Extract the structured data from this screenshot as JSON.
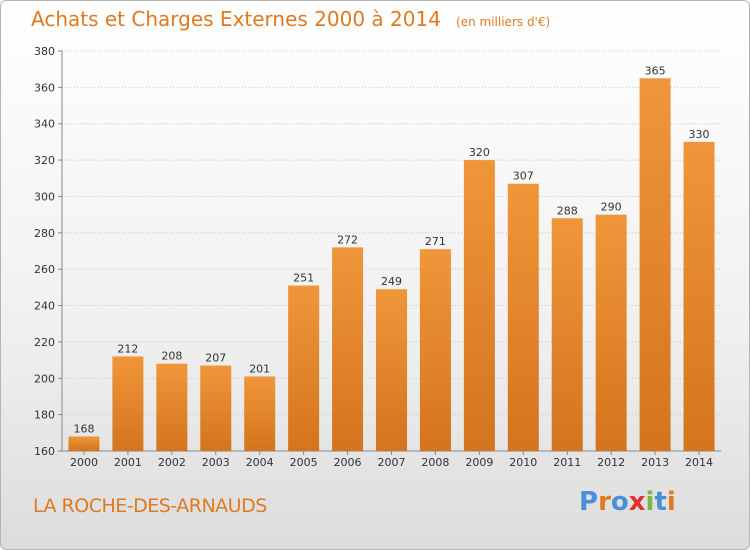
{
  "title": "Achats et Charges Externes 2000 à 2014",
  "unit": "(en milliers d'€)",
  "place": "LA ROCHE-DES-ARNAUDS",
  "logo": {
    "text": "Proxiti",
    "colors": [
      "#4a90d9",
      "#e07a1f",
      "#4a90d9",
      "#e8302a",
      "#7ab648",
      "#4a90d9",
      "#e07a1f"
    ]
  },
  "colors": {
    "bar": "#f0963a",
    "bar_dark": "#d4741e",
    "accent": "#e07a1f",
    "grid": "#c8c8c8"
  },
  "chart_data": {
    "type": "bar",
    "categories": [
      "2000",
      "2001",
      "2002",
      "2003",
      "2004",
      "2005",
      "2006",
      "2007",
      "2008",
      "2009",
      "2010",
      "2011",
      "2012",
      "2013",
      "2014"
    ],
    "values": [
      168,
      212,
      208,
      207,
      201,
      251,
      272,
      249,
      271,
      320,
      307,
      288,
      290,
      365,
      330
    ],
    "ylim": [
      160,
      380
    ],
    "yticks": [
      160,
      180,
      200,
      220,
      240,
      260,
      280,
      300,
      320,
      340,
      360,
      380
    ],
    "grid": true,
    "legend": "none"
  }
}
